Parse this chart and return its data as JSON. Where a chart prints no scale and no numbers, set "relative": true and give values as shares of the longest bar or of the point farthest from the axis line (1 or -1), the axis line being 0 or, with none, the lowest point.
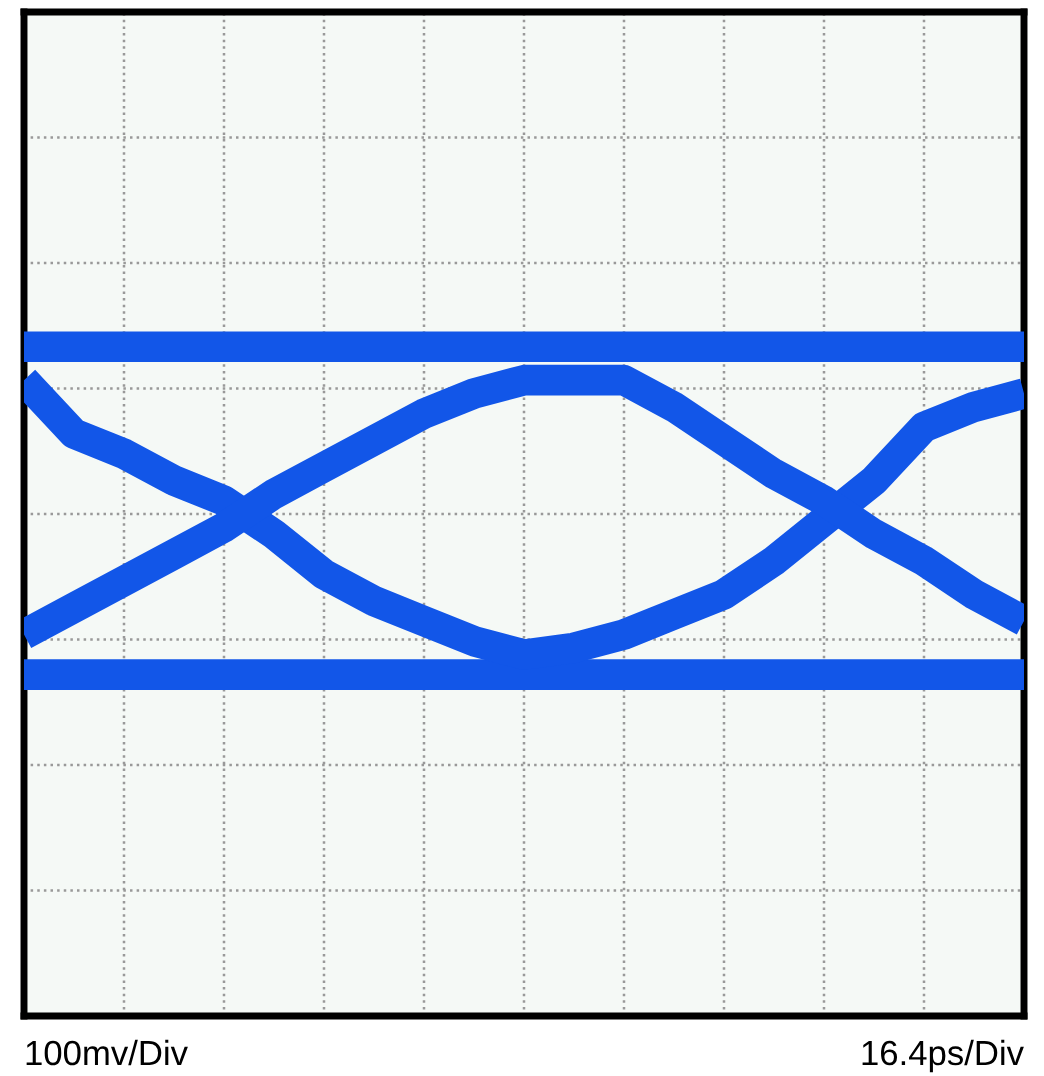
{
  "chart_data": {
    "type": "line",
    "relative": true,
    "grid": true,
    "line_style": "solid",
    "marker": "none",
    "categories": [
      null,
      null,
      null,
      null,
      null,
      null,
      null,
      null,
      null,
      null,
      null,
      null,
      null,
      null,
      null,
      null,
      null,
      null,
      null,
      null,
      null
    ],
    "series": [
      {
        "color": "#1256e8",
        "values": [
          1,
          1,
          1,
          1,
          1,
          1,
          1,
          1,
          1,
          1,
          1,
          1,
          1,
          1,
          1,
          1,
          1,
          1,
          1,
          1,
          1
        ]
      },
      {
        "color": "#1256e8",
        "values": [
          0.51,
          0.51,
          0.51,
          0.51,
          0.51,
          0.51,
          0.51,
          0.51,
          0.51,
          0.51,
          0.51,
          0.51,
          0.51,
          0.51,
          0.51,
          0.51,
          0.51,
          0.51,
          0.51,
          0.51,
          0.51
        ]
      },
      {
        "color": "#1256e8",
        "values": [
          0.95,
          0.87,
          0.84,
          0.8,
          0.77,
          0.72,
          0.66,
          0.62,
          0.59,
          0.56,
          0.54,
          0.55,
          0.57,
          0.6,
          0.63,
          0.68,
          0.74,
          0.8,
          0.88,
          0.91,
          0.93
        ]
      },
      {
        "color": "#1256e8",
        "values": [
          0.57,
          0.61,
          0.65,
          0.69,
          0.73,
          0.78,
          0.82,
          0.86,
          0.9,
          0.93,
          0.95,
          0.95,
          0.95,
          0.91,
          0.86,
          0.81,
          0.77,
          0.72,
          0.68,
          0.63,
          0.59
        ]
      }
    ],
    "annotations": [
      "100mv/Div",
      "16.4ps/Div"
    ]
  }
}
